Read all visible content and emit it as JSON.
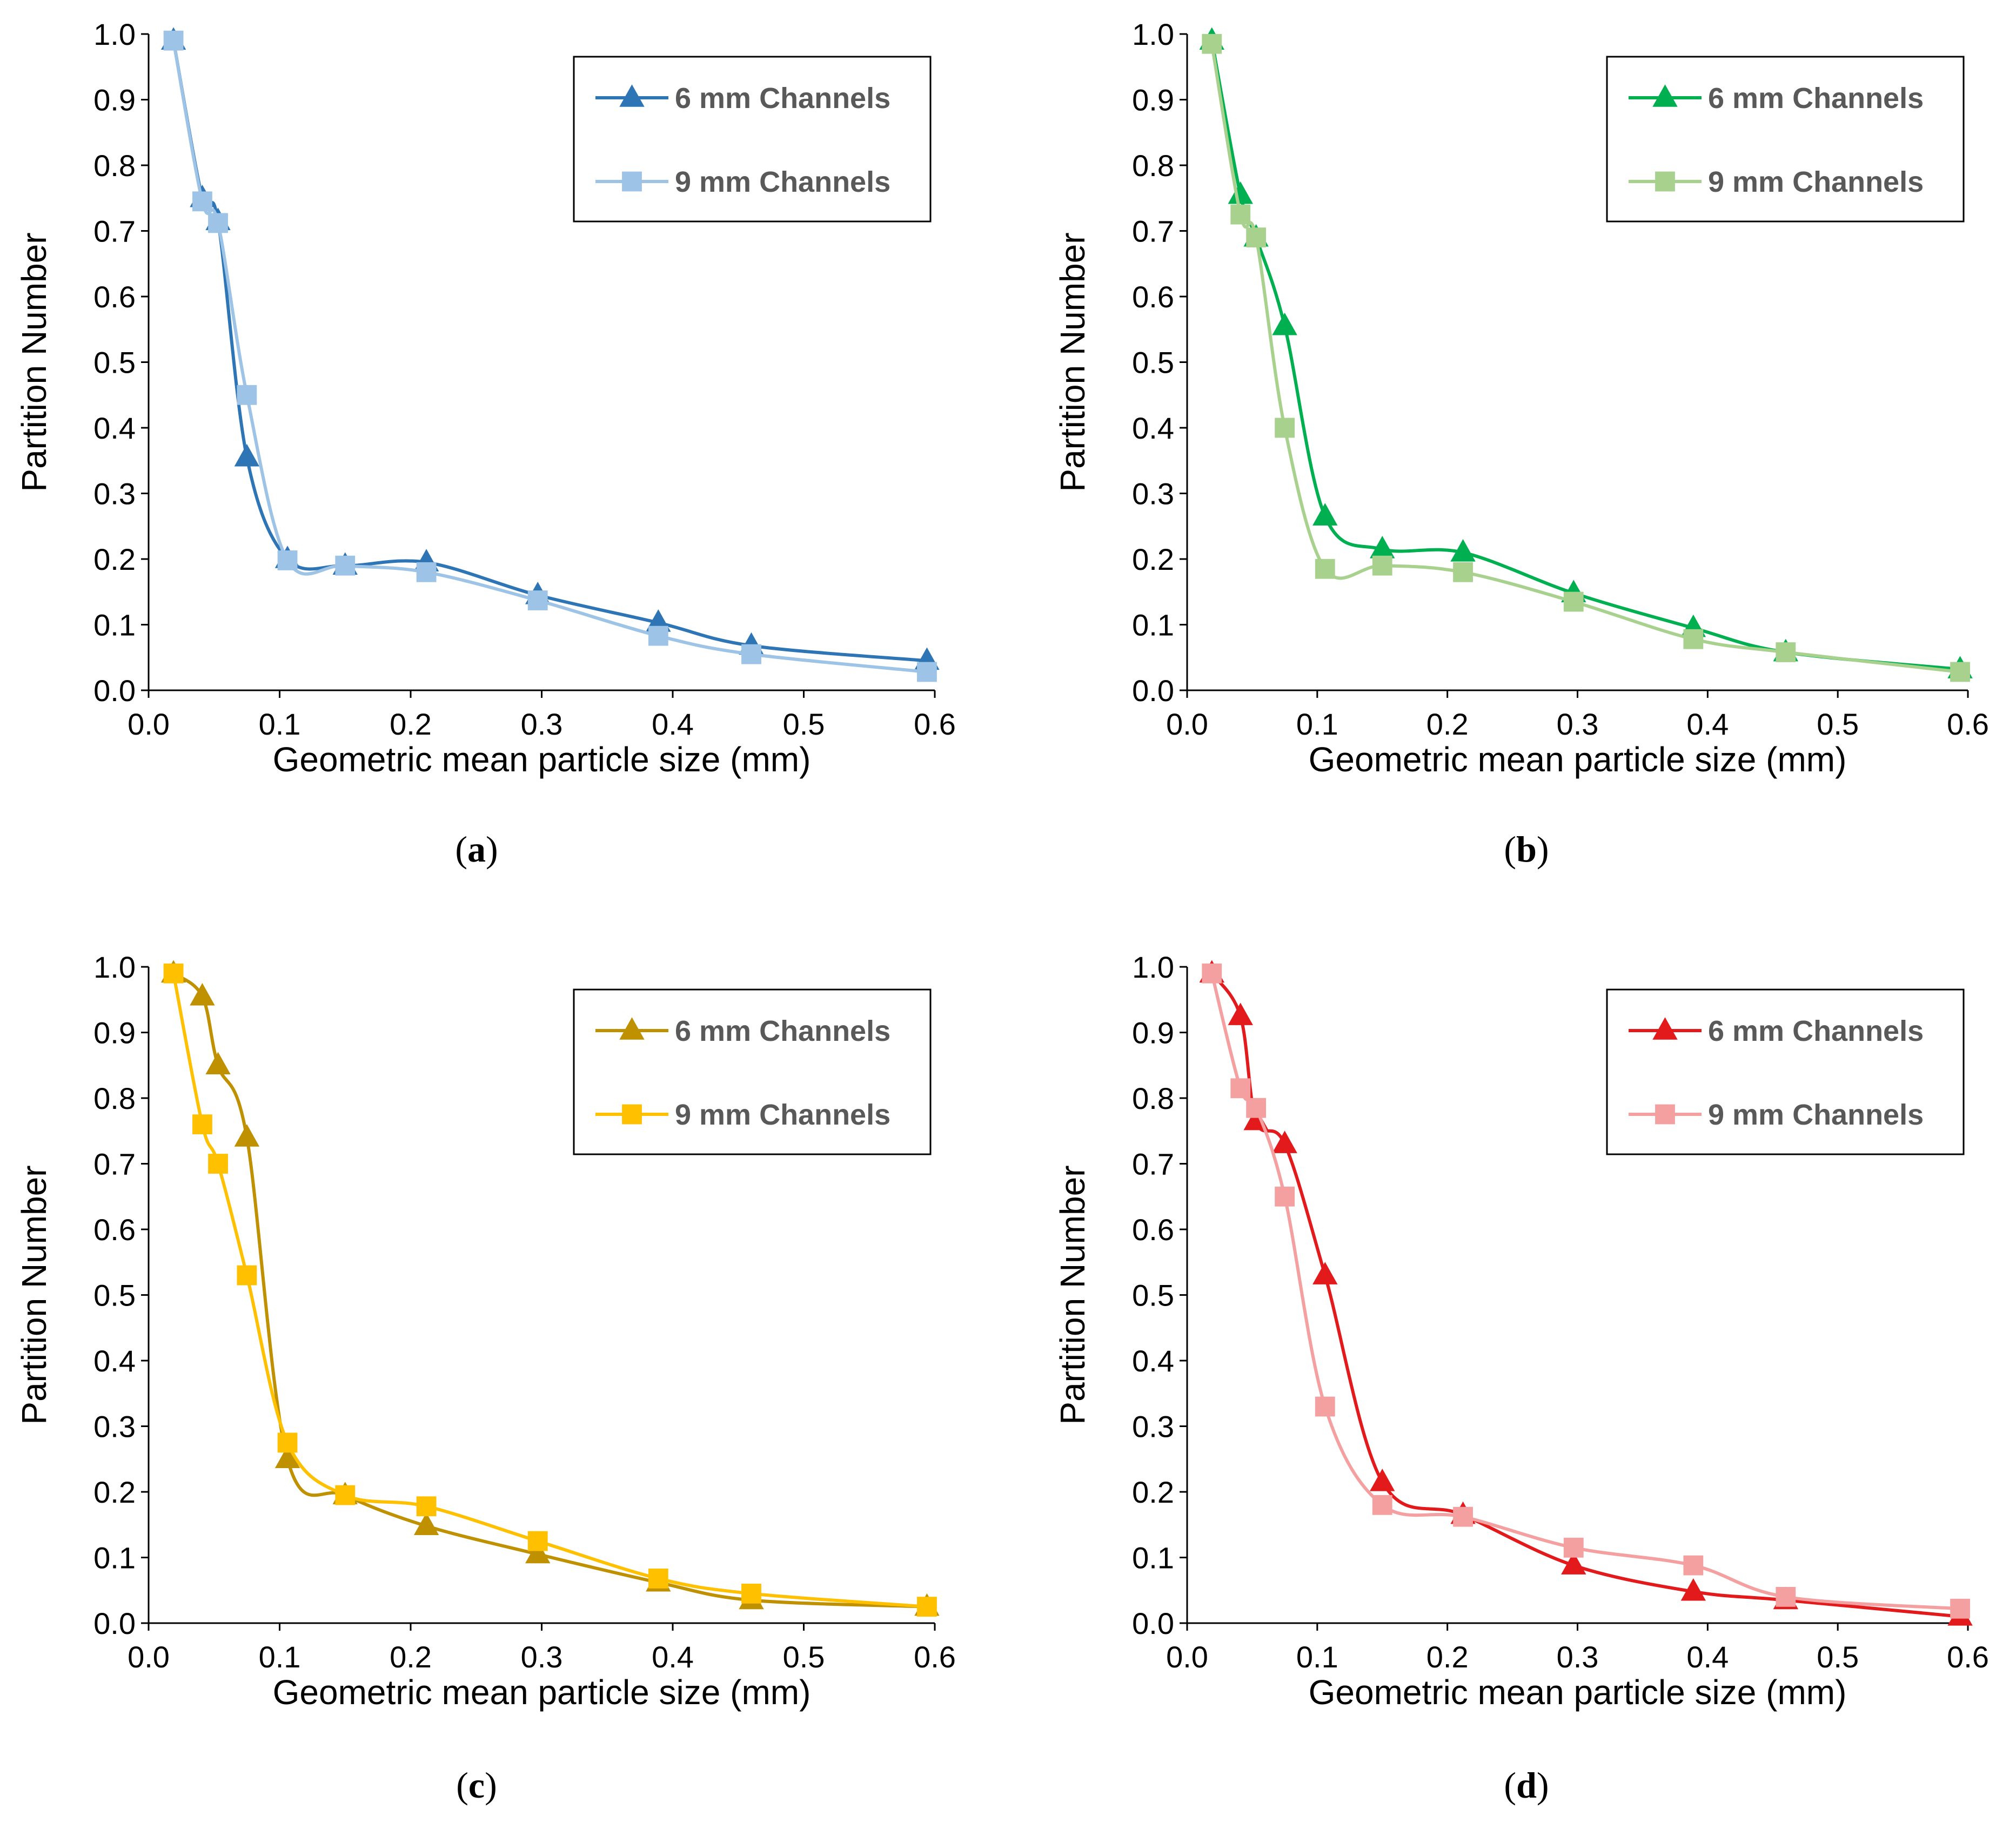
{
  "figure": {
    "colors": {
      "axis": "#000000",
      "legend_text": "#595959",
      "background": "#ffffff"
    }
  },
  "chart_data": [
    {
      "type": "line",
      "panel_label": "a",
      "xlabel": "Geometric mean particle size (mm)",
      "ylabel": "Partition Number",
      "xlim": [
        0.0,
        0.6
      ],
      "ylim": [
        0.0,
        1.0
      ],
      "xticks": [
        "0.0",
        "0.1",
        "0.2",
        "0.3",
        "0.4",
        "0.5",
        "0.6"
      ],
      "yticks": [
        "0.0",
        "0.1",
        "0.2",
        "0.3",
        "0.4",
        "0.5",
        "0.6",
        "0.7",
        "0.8",
        "0.9",
        "1.0"
      ],
      "grid": false,
      "legend_position": "top-right",
      "series": [
        {
          "name": "6 mm Channels",
          "marker": "triangle",
          "color": "#2E75B6",
          "x": [
            0.019,
            0.041,
            0.053,
            0.075,
            0.106,
            0.15,
            0.212,
            0.297,
            0.389,
            0.46,
            0.594
          ],
          "y": [
            0.99,
            0.75,
            0.715,
            0.355,
            0.2,
            0.19,
            0.195,
            0.145,
            0.103,
            0.068,
            0.045
          ]
        },
        {
          "name": "9 mm Channels",
          "marker": "square",
          "color": "#9DC3E6",
          "x": [
            0.019,
            0.041,
            0.053,
            0.075,
            0.106,
            0.15,
            0.212,
            0.297,
            0.389,
            0.46,
            0.594
          ],
          "y": [
            0.99,
            0.745,
            0.712,
            0.45,
            0.198,
            0.19,
            0.18,
            0.137,
            0.083,
            0.055,
            0.028
          ]
        }
      ]
    },
    {
      "type": "line",
      "panel_label": "b",
      "xlabel": "Geometric mean particle size (mm)",
      "ylabel": "Partition Number",
      "xlim": [
        0.0,
        0.6
      ],
      "ylim": [
        0.0,
        1.0
      ],
      "xticks": [
        "0.0",
        "0.1",
        "0.2",
        "0.3",
        "0.4",
        "0.5",
        "0.6"
      ],
      "yticks": [
        "0.0",
        "0.1",
        "0.2",
        "0.3",
        "0.4",
        "0.5",
        "0.6",
        "0.7",
        "0.8",
        "0.9",
        "1.0"
      ],
      "grid": false,
      "legend_position": "top-right",
      "series": [
        {
          "name": "6 mm Channels",
          "marker": "triangle",
          "color": "#00B050",
          "x": [
            0.019,
            0.041,
            0.053,
            0.075,
            0.106,
            0.15,
            0.212,
            0.297,
            0.389,
            0.46,
            0.594
          ],
          "y": [
            0.99,
            0.755,
            0.69,
            0.555,
            0.265,
            0.215,
            0.21,
            0.148,
            0.095,
            0.058,
            0.032
          ]
        },
        {
          "name": "9 mm Channels",
          "marker": "square",
          "color": "#A9D18E",
          "x": [
            0.019,
            0.041,
            0.053,
            0.075,
            0.106,
            0.15,
            0.212,
            0.297,
            0.389,
            0.46,
            0.594
          ],
          "y": [
            0.985,
            0.725,
            0.69,
            0.4,
            0.185,
            0.19,
            0.18,
            0.135,
            0.078,
            0.058,
            0.028
          ]
        }
      ]
    },
    {
      "type": "line",
      "panel_label": "c",
      "xlabel": "Geometric mean particle size (mm)",
      "ylabel": "Partition Number",
      "xlim": [
        0.0,
        0.6
      ],
      "ylim": [
        0.0,
        1.0
      ],
      "xticks": [
        "0.0",
        "0.1",
        "0.2",
        "0.3",
        "0.4",
        "0.5",
        "0.6"
      ],
      "yticks": [
        "0.0",
        "0.1",
        "0.2",
        "0.3",
        "0.4",
        "0.5",
        "0.6",
        "0.7",
        "0.8",
        "0.9",
        "1.0"
      ],
      "grid": false,
      "legend_position": "top-right",
      "series": [
        {
          "name": "6 mm Channels",
          "marker": "triangle",
          "color": "#BF9000",
          "x": [
            0.019,
            0.041,
            0.053,
            0.075,
            0.106,
            0.15,
            0.212,
            0.297,
            0.389,
            0.46,
            0.594
          ],
          "y": [
            0.99,
            0.955,
            0.85,
            0.74,
            0.25,
            0.195,
            0.148,
            0.105,
            0.062,
            0.035,
            0.025
          ]
        },
        {
          "name": "9 mm Channels",
          "marker": "square",
          "color": "#FFC000",
          "x": [
            0.019,
            0.041,
            0.053,
            0.075,
            0.106,
            0.15,
            0.212,
            0.297,
            0.389,
            0.46,
            0.594
          ],
          "y": [
            0.99,
            0.76,
            0.7,
            0.53,
            0.275,
            0.195,
            0.178,
            0.125,
            0.068,
            0.045,
            0.025
          ]
        }
      ]
    },
    {
      "type": "line",
      "panel_label": "d",
      "xlabel": "Geometric mean particle size (mm)",
      "ylabel": "Partition Number",
      "xlim": [
        0.0,
        0.6
      ],
      "ylim": [
        0.0,
        1.0
      ],
      "xticks": [
        "0.0",
        "0.1",
        "0.2",
        "0.3",
        "0.4",
        "0.5",
        "0.6"
      ],
      "yticks": [
        "0.0",
        "0.1",
        "0.2",
        "0.3",
        "0.4",
        "0.5",
        "0.6",
        "0.7",
        "0.8",
        "0.9",
        "1.0"
      ],
      "grid": false,
      "legend_position": "top-right",
      "series": [
        {
          "name": "6 mm Channels",
          "marker": "triangle",
          "color": "#E31A1C",
          "x": [
            0.019,
            0.041,
            0.053,
            0.075,
            0.106,
            0.15,
            0.212,
            0.297,
            0.389,
            0.46,
            0.594
          ],
          "y": [
            0.99,
            0.925,
            0.765,
            0.73,
            0.53,
            0.215,
            0.165,
            0.088,
            0.048,
            0.035,
            0.01
          ]
        },
        {
          "name": "9 mm Channels",
          "marker": "square",
          "color": "#F4A0A0",
          "x": [
            0.019,
            0.041,
            0.053,
            0.075,
            0.106,
            0.15,
            0.212,
            0.297,
            0.389,
            0.46,
            0.594
          ],
          "y": [
            0.99,
            0.815,
            0.785,
            0.65,
            0.33,
            0.18,
            0.162,
            0.115,
            0.088,
            0.04,
            0.022
          ]
        }
      ]
    }
  ]
}
